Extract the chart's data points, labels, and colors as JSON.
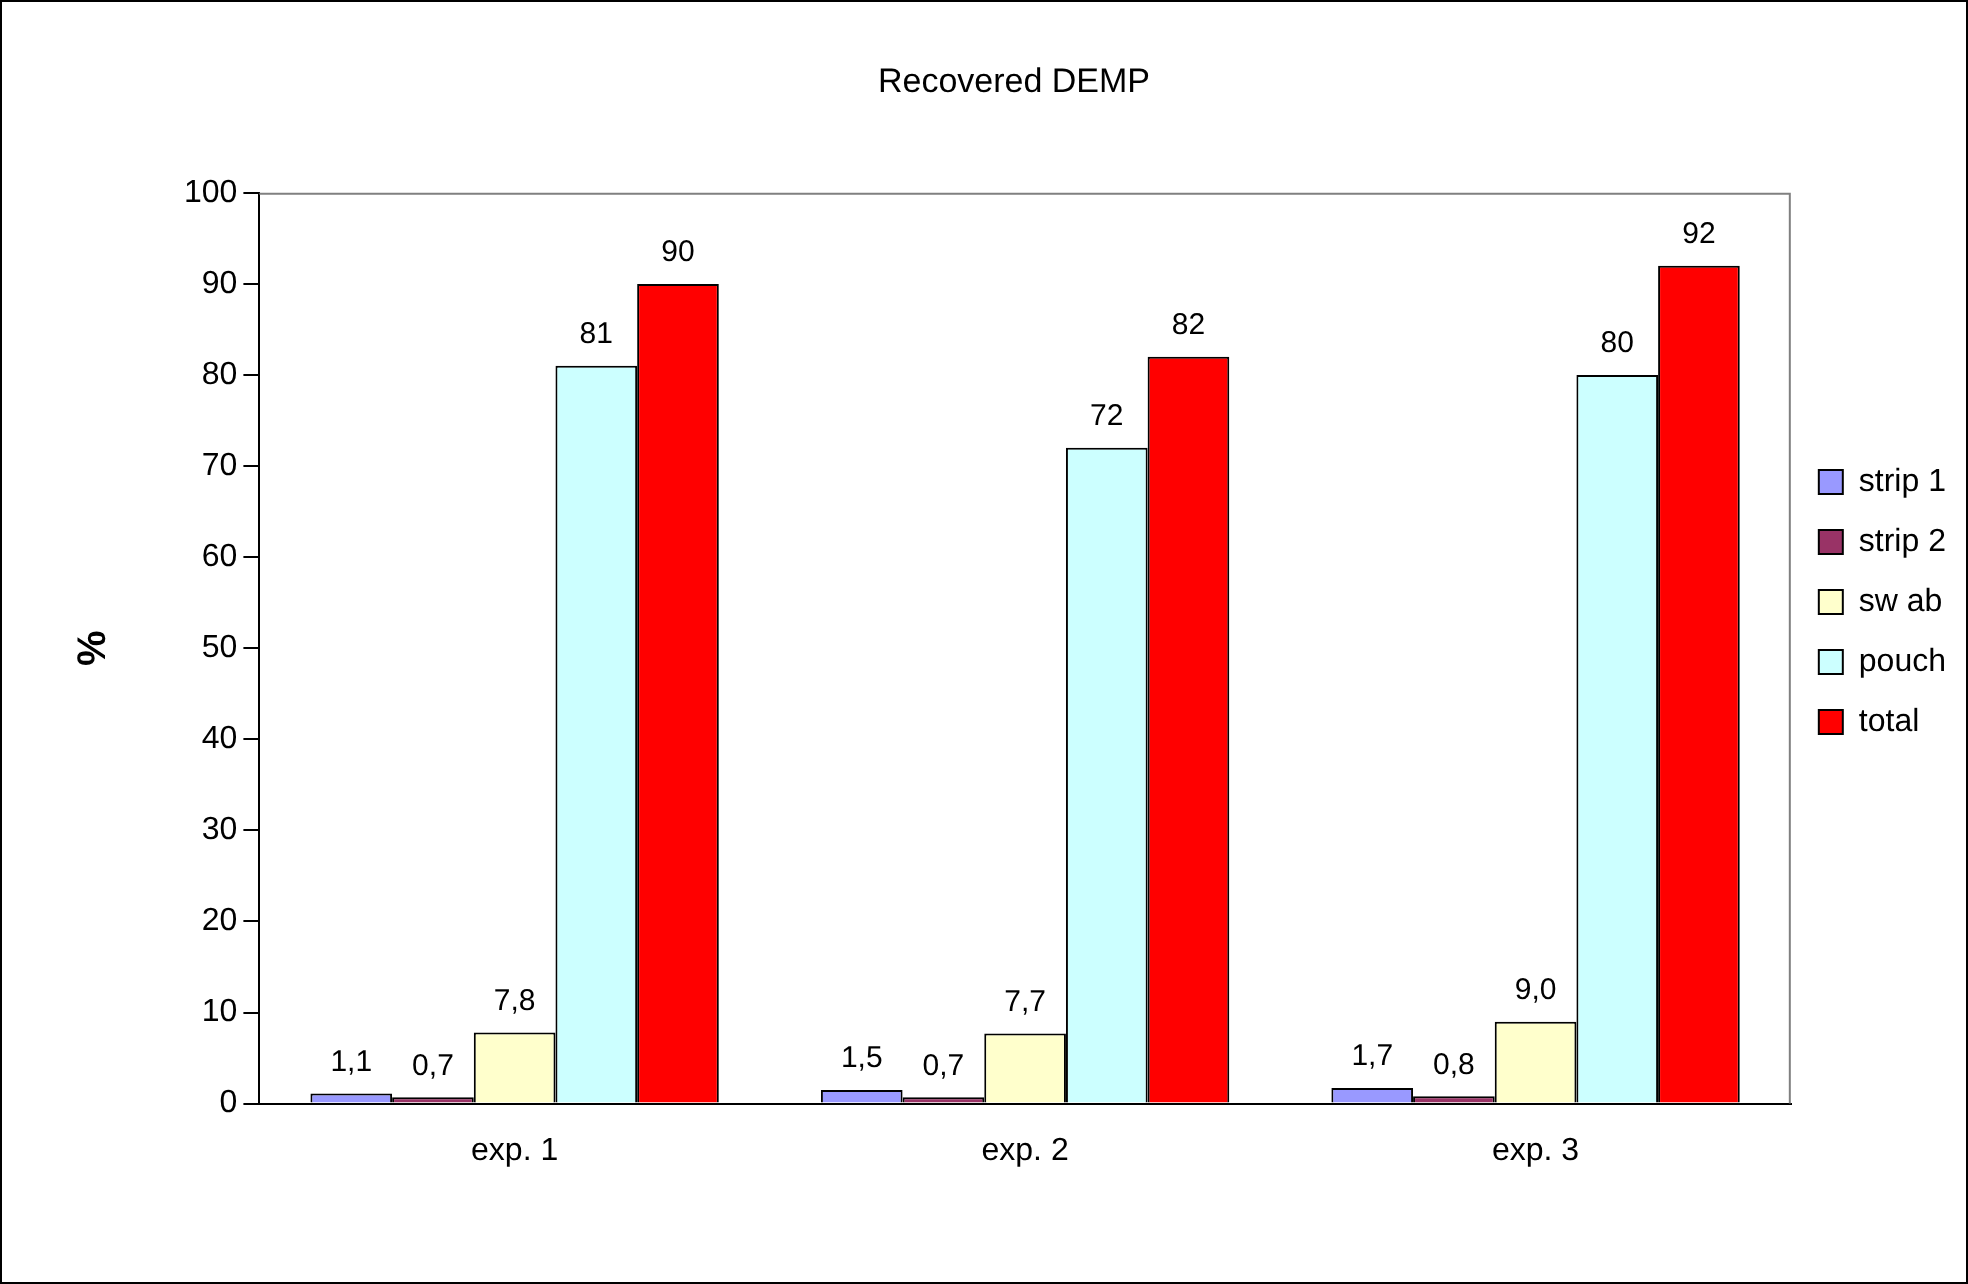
{
  "chart_data": {
    "type": "bar",
    "title": "Recovered DEMP",
    "ylabel": "%",
    "categories": [
      "exp. 1",
      "exp. 2",
      "exp. 3"
    ],
    "series": [
      {
        "name": "strip 1",
        "color": "#9999ff",
        "values": [
          1.1,
          1.5,
          1.7
        ],
        "value_labels": [
          "1,1",
          "1,5",
          "1,7"
        ]
      },
      {
        "name": "strip 2",
        "color": "#993366",
        "values": [
          0.7,
          0.7,
          0.8
        ],
        "value_labels": [
          "0,7",
          "0,7",
          "0,8"
        ]
      },
      {
        "name": "sw ab",
        "color": "#ffffcc",
        "values": [
          7.8,
          7.7,
          9.0
        ],
        "value_labels": [
          "7,8",
          "7,7",
          "9,0"
        ]
      },
      {
        "name": "pouch",
        "color": "#ccffff",
        "values": [
          81,
          72,
          80
        ],
        "value_labels": [
          "81",
          "72",
          "80"
        ]
      },
      {
        "name": "total",
        "color": "#ff0000",
        "values": [
          90,
          82,
          92
        ],
        "value_labels": [
          "90",
          "82",
          "92"
        ]
      }
    ],
    "ylim": [
      0,
      100
    ],
    "yticks": [
      0,
      10,
      20,
      30,
      40,
      50,
      60,
      70,
      80,
      90,
      100
    ],
    "grid": false,
    "legend": "right"
  }
}
